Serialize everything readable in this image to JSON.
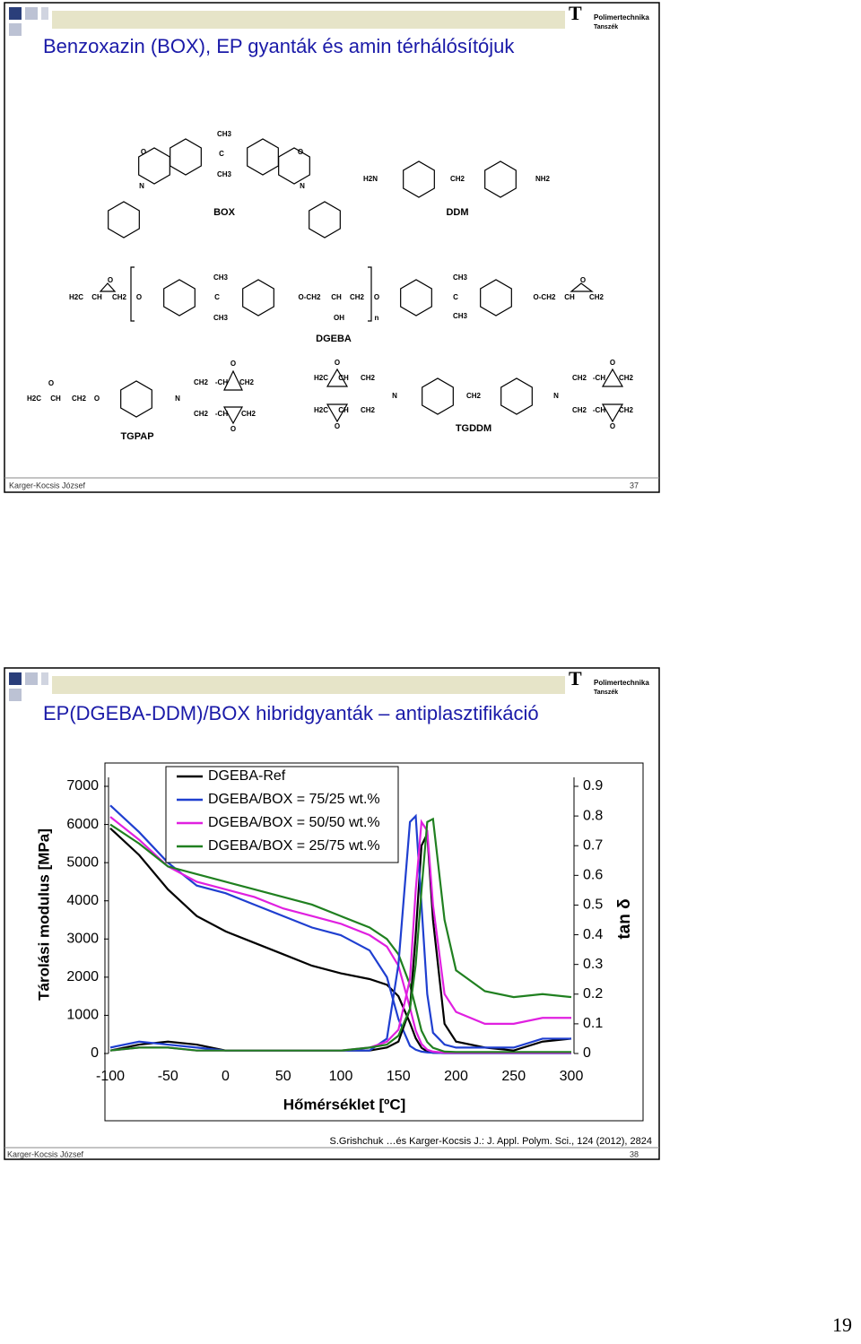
{
  "slides": [
    {
      "logo": [
        "Polimertechnika",
        "Tanszék"
      ],
      "title": "Benzoxazin (BOX), EP gyanták és amin térhálósítójuk",
      "structures": [
        {
          "name": "BOX",
          "labels": [
            "CH3",
            "C",
            "CH3",
            "O",
            "O",
            "N",
            "N"
          ]
        },
        {
          "name": "DDM",
          "labels": [
            "H2N",
            "CH2",
            "NH2"
          ]
        },
        {
          "name": "DGEBA",
          "labels": [
            "O",
            "H2C",
            "CH",
            "CH2",
            "O",
            "CH3",
            "C",
            "CH3",
            "O-CH2",
            "CH",
            "CH2",
            "O",
            "OH",
            "n",
            "CH3",
            "C",
            "CH3",
            "O-CH2",
            "CH",
            "CH2",
            "O"
          ]
        },
        {
          "name": "TGPAP",
          "labels": [
            "O",
            "H2C",
            "CH",
            "CH2",
            "O",
            "N",
            "CH2",
            "-CH",
            "CH2",
            "O",
            "CH2",
            "-CH",
            "CH2",
            "O"
          ]
        },
        {
          "name": "TGDDM",
          "labels": [
            "O",
            "H2C",
            "CH",
            "CH2",
            "N",
            "H2C",
            "CH",
            "CH2",
            "O",
            "CH2",
            "N",
            "CH2",
            "-CH",
            "CH2",
            "O",
            "CH2",
            "-CH",
            "CH2",
            "O"
          ]
        }
      ],
      "footer": {
        "author": "Karger-Kocsis József",
        "number": "37"
      }
    },
    {
      "logo": [
        "Polimertechnika",
        "Tanszék"
      ],
      "title": "EP(DGEBA-DDM)/BOX hibridgyanták – antiplasztifikáció",
      "chart_data": {
        "type": "line",
        "xlabel": "Hőmérséklet [ºC]",
        "ylabel": "Tárolási modulus [MPa]",
        "y2label": "tan δ",
        "x": [
          -100,
          -75,
          -50,
          -25,
          0,
          25,
          50,
          75,
          100,
          125,
          140,
          150,
          160,
          165,
          170,
          175,
          180,
          190,
          200,
          225,
          250,
          275,
          300
        ],
        "xlim": [
          -100,
          300
        ],
        "xticks": [
          -100,
          -50,
          0,
          50,
          100,
          150,
          200,
          250,
          300
        ],
        "ylim": [
          0,
          7000
        ],
        "yticks": [
          0,
          1000,
          2000,
          3000,
          4000,
          5000,
          6000,
          7000
        ],
        "y2lim": [
          0,
          0.9
        ],
        "y2ticks": [
          0,
          0.1,
          0.2,
          0.3,
          0.4,
          0.5,
          0.6,
          0.7,
          0.8,
          0.9
        ],
        "series": [
          {
            "name": "DGEBA-Ref",
            "color": "#000000",
            "values": [
              5900,
              5200,
              4300,
              3600,
              3200,
              2900,
              2600,
              2300,
              2100,
              1950,
              1800,
              1500,
              800,
              400,
              150,
              50,
              20,
              10,
              10,
              10,
              10,
              10,
              10
            ]
          },
          {
            "name": "DGEBA/BOX = 75/25 wt.%",
            "color": "#1f3fd0",
            "values": [
              6500,
              5800,
              5000,
              4400,
              4200,
              3900,
              3600,
              3300,
              3100,
              2700,
              2000,
              900,
              200,
              100,
              50,
              30,
              20,
              10,
              10,
              10,
              10,
              10,
              10
            ]
          },
          {
            "name": "DGEBA/BOX = 50/50 wt.%",
            "color": "#e020e0",
            "values": [
              6200,
              5600,
              4900,
              4500,
              4300,
              4100,
              3800,
              3600,
              3400,
              3100,
              2800,
              2300,
              1200,
              600,
              250,
              100,
              50,
              20,
              20,
              20,
              20,
              20,
              20
            ]
          },
          {
            "name": "DGEBA/BOX = 25/75 wt.%",
            "color": "#208020",
            "values": [
              6000,
              5500,
              4900,
              4700,
              4500,
              4300,
              4100,
              3900,
              3600,
              3300,
              3000,
              2600,
              1800,
              1200,
              600,
              300,
              150,
              50,
              40,
              40,
              40,
              40,
              40
            ]
          },
          {
            "axis": "y2",
            "color": "#000000",
            "values": [
              0.01,
              0.03,
              0.04,
              0.03,
              0.01,
              0.01,
              0.01,
              0.01,
              0.01,
              0.01,
              0.02,
              0.04,
              0.15,
              0.4,
              0.7,
              0.74,
              0.45,
              0.1,
              0.04,
              0.02,
              0.01,
              0.04,
              0.05
            ]
          },
          {
            "axis": "y2",
            "color": "#1f3fd0",
            "values": [
              0.02,
              0.04,
              0.03,
              0.02,
              0.01,
              0.01,
              0.01,
              0.01,
              0.01,
              0.01,
              0.05,
              0.3,
              0.78,
              0.8,
              0.5,
              0.2,
              0.07,
              0.03,
              0.02,
              0.02,
              0.02,
              0.05,
              0.05
            ]
          },
          {
            "axis": "y2",
            "color": "#e020e0",
            "values": [
              0.01,
              0.02,
              0.02,
              0.01,
              0.01,
              0.01,
              0.01,
              0.01,
              0.01,
              0.02,
              0.04,
              0.08,
              0.25,
              0.55,
              0.78,
              0.75,
              0.5,
              0.2,
              0.14,
              0.1,
              0.1,
              0.12,
              0.12
            ]
          },
          {
            "axis": "y2",
            "color": "#208020",
            "values": [
              0.01,
              0.02,
              0.02,
              0.01,
              0.01,
              0.01,
              0.01,
              0.01,
              0.01,
              0.02,
              0.03,
              0.06,
              0.15,
              0.3,
              0.55,
              0.78,
              0.79,
              0.45,
              0.28,
              0.21,
              0.19,
              0.2,
              0.19
            ]
          }
        ]
      },
      "citation": "S.Grishchuk …és Karger-Kocsis J.: J. Appl. Polym. Sci., 124 (2012), 2824",
      "footer": {
        "author": "Karger-Kocsis József",
        "number": "38"
      }
    }
  ],
  "page_number": "19"
}
